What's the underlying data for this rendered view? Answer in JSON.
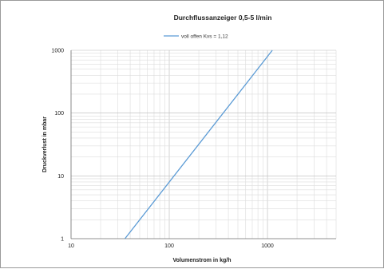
{
  "chart_data": {
    "type": "line",
    "title": "Durchflussanzeiger 0,5-5 l/min",
    "xlabel": "Volumenstrom in kg/h",
    "ylabel": "Druckverlust in mbar",
    "xscale": "log",
    "yscale": "log",
    "xlim": [
      10,
      5000
    ],
    "ylim": [
      1,
      1000
    ],
    "x_ticks": [
      "10",
      "100",
      "1000"
    ],
    "y_ticks": [
      "1",
      "10",
      "100",
      "1000"
    ],
    "grid": true,
    "legend_position": "top",
    "series": [
      {
        "name": "voll offen Kvs = 1,12",
        "color": "#5b9bd5",
        "x": [
          35.4,
          1120
        ],
        "y": [
          1,
          1000
        ]
      }
    ]
  }
}
